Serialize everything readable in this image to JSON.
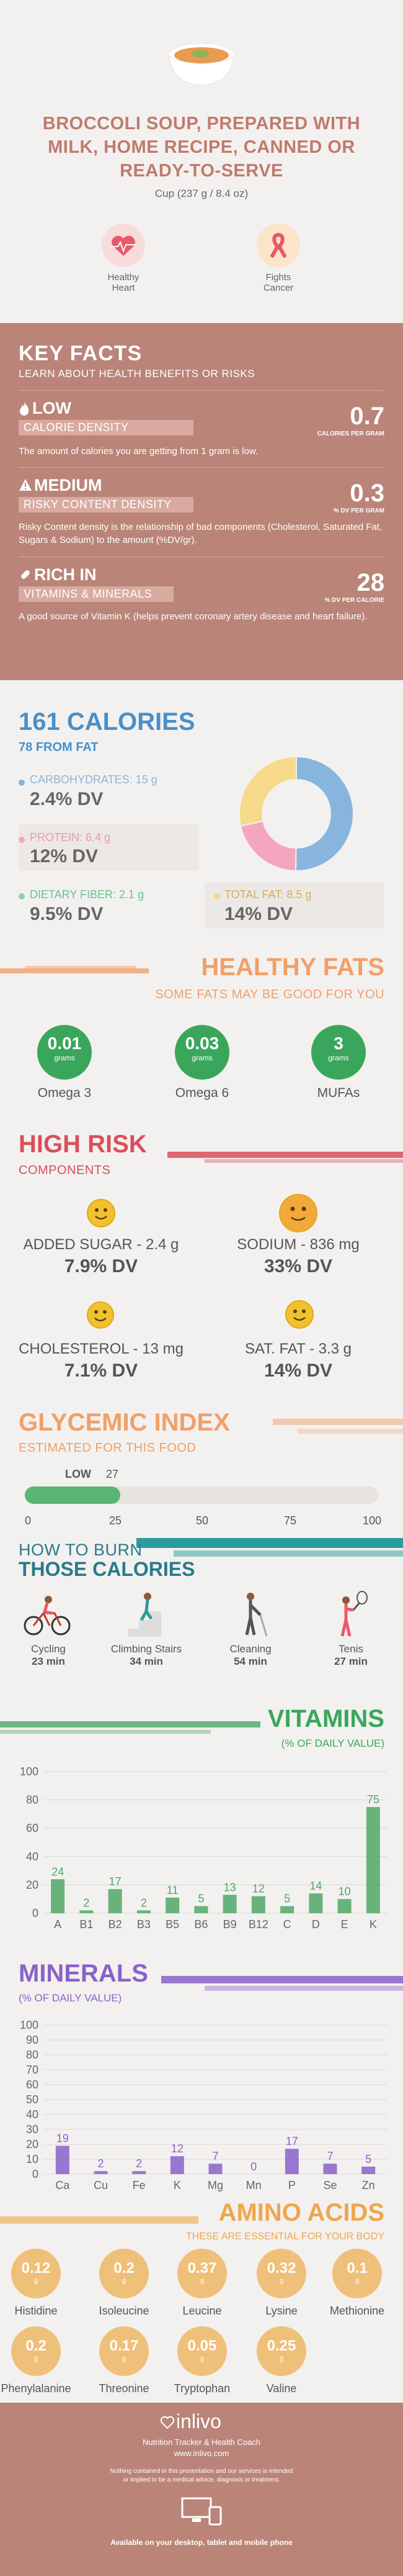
{
  "header": {
    "title": "BROCCOLI SOUP, PREPARED WITH MILK, HOME RECIPE, CANNED OR READY-TO-SERVE",
    "serving": "Cup (237 g / 8.4 oz)"
  },
  "badges": [
    {
      "label": "Healthy Heart",
      "icon": "heart-pulse-icon"
    },
    {
      "label": "Fights Cancer",
      "icon": "ribbon-icon"
    }
  ],
  "key_facts": {
    "title": "KEY FACTS",
    "subtitle": "LEARN ABOUT HEALTH BENEFITS OR RISKS",
    "items": [
      {
        "tag": "LOW",
        "bar": "CALORIE DENSITY",
        "value": "0.7",
        "unit": "CALORIES PER GRAM",
        "desc": "The amount of calories you are getting from 1 gram is low.",
        "icon": "fire-icon"
      },
      {
        "tag": "MEDIUM",
        "bar": "RISKY CONTENT DENSITY",
        "value": "0.3",
        "unit": "% DV PER GRAM",
        "desc": "Risky Content density is the relationship of bad components (Cholesterol, Saturated Fat, Sugars & Sodium) to the amount (%DV/gr).",
        "icon": "warning-icon"
      },
      {
        "tag": "RICH IN",
        "bar": "VITAMINS & MINERALS",
        "value": "28",
        "unit": "% DV PER CALORIE",
        "desc": "A good source of Vitamin K (helps prevent coronary artery disease and heart failure).",
        "icon": "pill-icon"
      }
    ]
  },
  "calories": {
    "title": "161 CALORIES",
    "subtitle": "78 FROM FAT",
    "carbs": {
      "label": "CARBOHYDRATES: 15 g",
      "dv": "2.4% DV"
    },
    "protein": {
      "label": "PROTEIN: 6.4 g",
      "dv": "12% DV"
    },
    "fiber": {
      "label": "DIETARY FIBER: 2.1 g",
      "dv": "9.5% DV"
    },
    "fat": {
      "label": "TOTAL FAT: 8.5 g",
      "dv": "14% DV"
    },
    "donut": [
      {
        "name": "carbohydrates",
        "value": 15,
        "color": "#87b5dd"
      },
      {
        "name": "protein",
        "value": 6.4,
        "color": "#f5a6bf"
      },
      {
        "name": "fat",
        "value": 8.5,
        "color": "#f6d98a"
      }
    ]
  },
  "healthy_fats": {
    "title": "HEALTHY FATS",
    "subtitle": "SOME FATS MAY BE GOOD FOR YOU",
    "items": [
      {
        "value": "0.01",
        "unit": "grams",
        "label": "Omega 3"
      },
      {
        "value": "0.03",
        "unit": "grams",
        "label": "Omega 6"
      },
      {
        "value": "3",
        "unit": "grams",
        "label": "MUFAs"
      }
    ]
  },
  "high_risk": {
    "title": "HIGH RISK",
    "subtitle": "COMPONENTS",
    "items": [
      {
        "label": "ADDED SUGAR - 2.4 g",
        "dv": "7.9% DV"
      },
      {
        "label": "SODIUM - 836 mg",
        "dv": "33% DV"
      },
      {
        "label": "CHOLESTEROL - 13 mg",
        "dv": "7.1% DV"
      },
      {
        "label": "SAT. FAT - 3.3 g",
        "dv": "14% DV"
      }
    ]
  },
  "glycemic": {
    "title": "GLYCEMIC INDEX",
    "subtitle": "ESTIMATED FOR THIS FOOD",
    "level": "LOW",
    "value": "27",
    "value_num": 27,
    "ticks": [
      "0",
      "25",
      "50",
      "75",
      "100"
    ]
  },
  "burn": {
    "title1": "HOW TO BURN",
    "title2": "THOSE CALORIES",
    "items": [
      {
        "label": "Cycling",
        "time": "23 min",
        "icon": "cycling-icon"
      },
      {
        "label": "Climbing Stairs",
        "time": "34 min",
        "icon": "stairs-icon"
      },
      {
        "label": "Cleaning",
        "time": "54 min",
        "icon": "cleaning-icon"
      },
      {
        "label": "Tenis",
        "time": "27 min",
        "icon": "tennis-icon"
      }
    ]
  },
  "vitamins": {
    "title": "VITAMINS",
    "subtitle": "(% OF DAILY VALUE)"
  },
  "minerals": {
    "title": "MINERALS",
    "subtitle": "(% OF DAILY VALUE)"
  },
  "chart_data": [
    {
      "type": "bar",
      "title": "VITAMINS",
      "ylabel": "(% OF DAILY VALUE)",
      "categories": [
        "A",
        "B1",
        "B2",
        "B3",
        "B5",
        "B6",
        "B9",
        "B12",
        "C",
        "D",
        "E",
        "K"
      ],
      "values": [
        24,
        2,
        17,
        2,
        11,
        5,
        13,
        12,
        5,
        14,
        10,
        75
      ],
      "ylim": [
        0,
        100
      ],
      "yticks": [
        "0",
        "20",
        "40",
        "60",
        "80",
        "100"
      ],
      "color": "#4ea866"
    },
    {
      "type": "bar",
      "title": "MINERALS",
      "ylabel": "(% OF DAILY VALUE)",
      "categories": [
        "Ca",
        "Cu",
        "Fe",
        "K",
        "Mg",
        "Mn",
        "P",
        "Se",
        "Zn"
      ],
      "values": [
        19,
        2,
        2,
        12,
        7,
        0,
        17,
        7,
        5
      ],
      "ylim": [
        0,
        100
      ],
      "yticks": [
        "0",
        "10",
        "20",
        "30",
        "40",
        "50",
        "60",
        "70",
        "80",
        "90",
        "100"
      ],
      "color": "#8a62c9"
    }
  ],
  "amino": {
    "title": "AMINO ACIDS",
    "subtitle": "THESE ARE ESSENTIAL FOR YOUR BODY",
    "unit": "g",
    "items": [
      {
        "value": "0.12",
        "label": "Histidine"
      },
      {
        "value": "0.2",
        "label": "Isoleucine"
      },
      {
        "value": "0.37",
        "label": "Leucine"
      },
      {
        "value": "0.32",
        "label": "Lysine"
      },
      {
        "value": "0.1",
        "label": "Methionine"
      },
      {
        "value": "0.2",
        "label": "Phenylalanine"
      },
      {
        "value": "0.17",
        "label": "Threonine"
      },
      {
        "value": "0.05",
        "label": "Tryptophan"
      },
      {
        "value": "0.25",
        "label": "Valine"
      }
    ]
  },
  "footer": {
    "brand": "inlivo",
    "tagline": "Nutrition Tracker & Health Coach",
    "url": "www.inlivo.com",
    "disclaimer": "Nothing contained in this presentation and our services is intended or implied to be a medical advice, diagnosis or treatment.",
    "available": "Available on your desktop, tablet and mobile phone"
  },
  "colors": {
    "accent": "#ba8478",
    "blue": "#4a8fc8",
    "orange": "#f0a068",
    "green": "#3aa65c",
    "red": "#d94f5c",
    "purple": "#8a62c9",
    "amino": "#efc07a"
  }
}
